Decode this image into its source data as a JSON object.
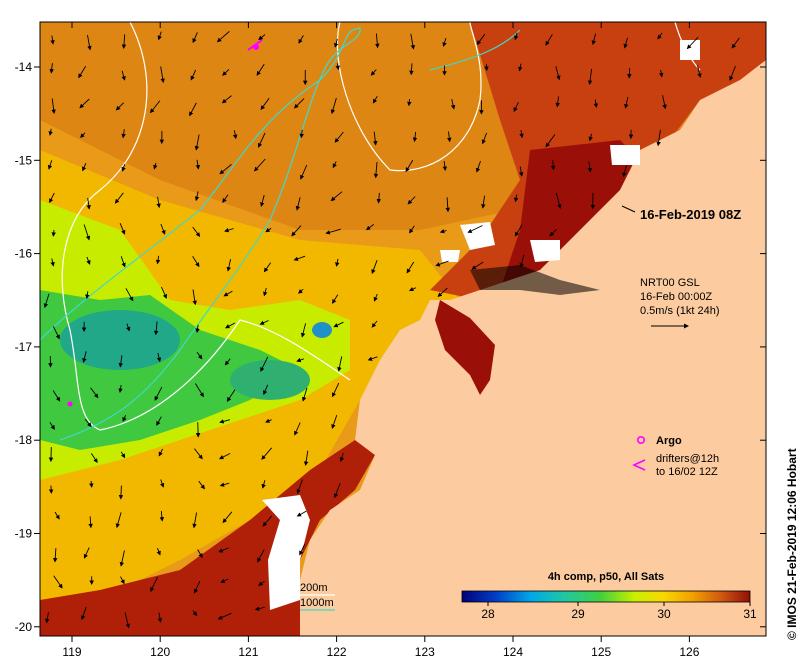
{
  "map": {
    "x_ticks": [
      "119",
      "120",
      "121",
      "122",
      "123",
      "124",
      "125",
      "126"
    ],
    "y_ticks": [
      "-14",
      "-15",
      "-16",
      "-17",
      "-18",
      "-19",
      "-20"
    ],
    "timestamp": "16-Feb-2019 08Z",
    "current_block": {
      "line1": "NRT00 GSL",
      "line2": "16-Feb 00:00Z",
      "line3": "0.5m/s (1kt 24h)"
    },
    "legend": {
      "argo_label": "Argo",
      "drifters_line1": "drifters@12h",
      "drifters_line2": "to 16/02 12Z",
      "contour_200": "200m",
      "contour_1000": "1000m"
    },
    "colorbar": {
      "title": "4h comp, p50, All Sats",
      "ticks": [
        "28",
        "29",
        "30",
        "31"
      ]
    },
    "credit": "© IMOS 21-Feb-2019 12:06 Hobart",
    "colors": {
      "land": "#fccca0",
      "shelf_200": "#ffffff",
      "shelf_1000": "#40d8c8",
      "argo": "#ff00ff",
      "hot": "#a01008",
      "warm": "#e08818",
      "mid": "#f8c800",
      "cool": "#b8f000",
      "cooler": "#30c040"
    }
  }
}
